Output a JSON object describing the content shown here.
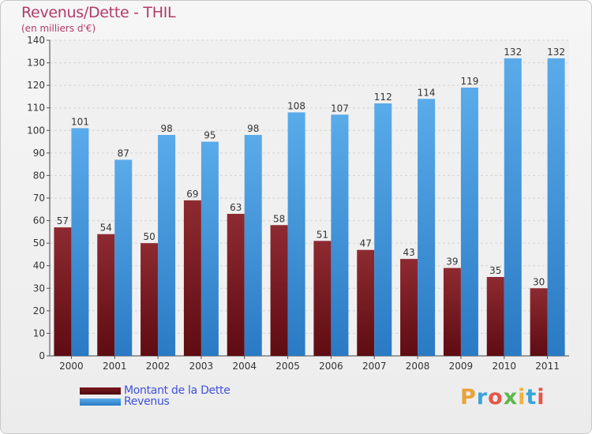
{
  "chart_data": {
    "type": "bar",
    "title": "Revenus/Dette - THIL",
    "subtitle": "(en milliers d'€)",
    "categories": [
      "2000",
      "2001",
      "2002",
      "2003",
      "2004",
      "2005",
      "2006",
      "2007",
      "2008",
      "2009",
      "2010",
      "2011"
    ],
    "series": [
      {
        "name": "Montant de la Dette",
        "color": "#7a1820",
        "values": [
          57,
          54,
          50,
          69,
          63,
          58,
          51,
          47,
          43,
          39,
          35,
          30
        ]
      },
      {
        "name": "Revenus",
        "color": "#3d96e0",
        "values": [
          101,
          87,
          98,
          95,
          98,
          108,
          107,
          112,
          114,
          119,
          132,
          132
        ]
      }
    ],
    "ylim": [
      0,
      140
    ],
    "yticks": [
      "0",
      "10",
      "20",
      "30",
      "40",
      "50",
      "60",
      "70",
      "80",
      "90",
      "100",
      "110",
      "120",
      "130",
      "140"
    ],
    "grid": true,
    "legend": "bottom-left"
  },
  "logo": {
    "letters": [
      "P",
      "r",
      "o",
      "x",
      "i",
      "t",
      "i"
    ]
  }
}
